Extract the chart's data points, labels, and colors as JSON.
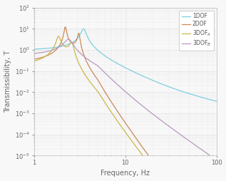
{
  "title": "",
  "xlabel": "Frequency, Hz",
  "ylabel": "Transmissibility, T",
  "xlim": [
    1,
    100
  ],
  "ylim": [
    1e-05,
    100.0
  ],
  "legend_labels": [
    "1DOF",
    "2DOF",
    "3DOF$_A$",
    "3DOF$_B$"
  ],
  "colors": [
    "#7ecfe0",
    "#cc8855",
    "#c8b84a",
    "#b898c0"
  ],
  "background_color": "#f8f8f8",
  "linewidth": 0.9
}
